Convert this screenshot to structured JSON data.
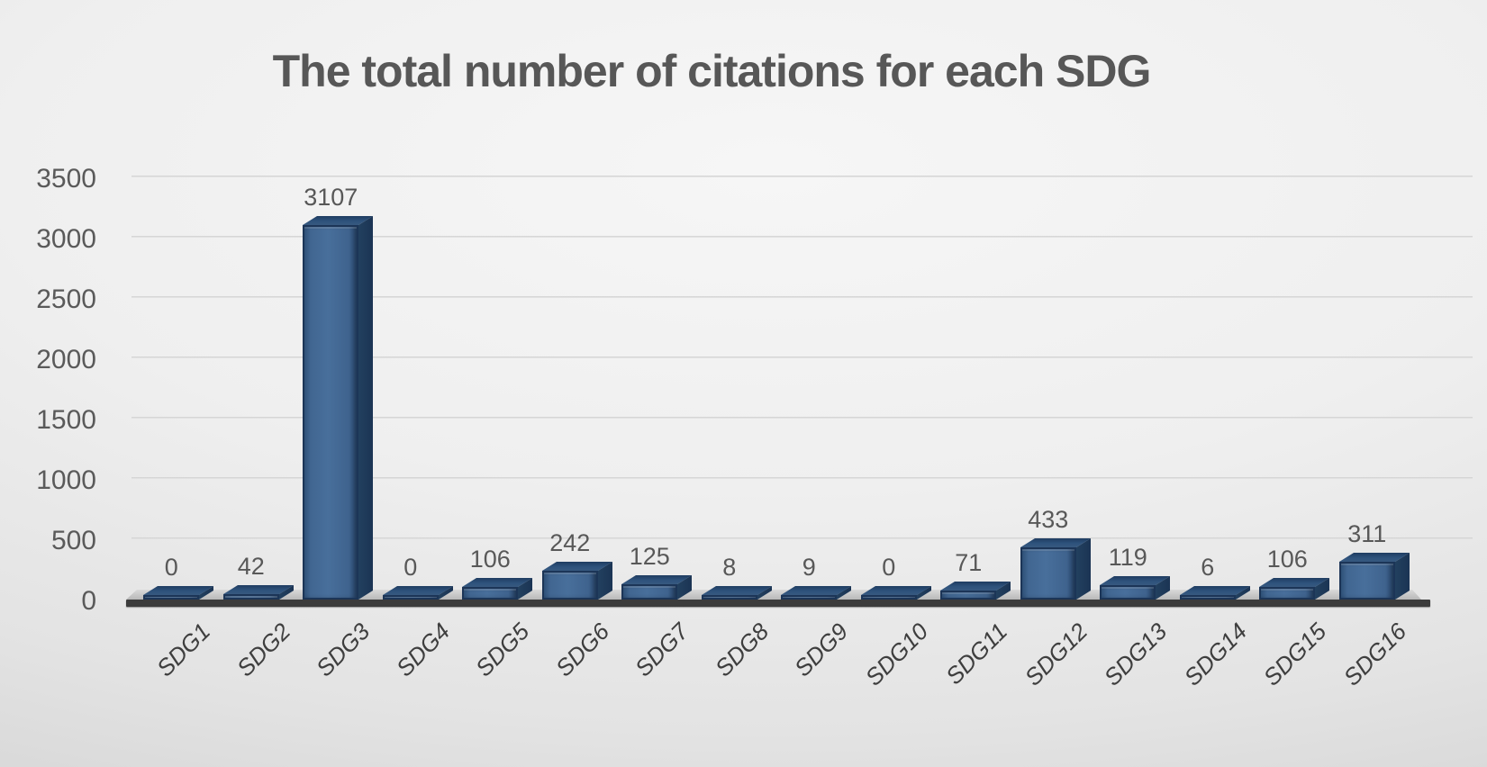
{
  "title": "The total number of citations for each SDG",
  "chart_data": {
    "type": "bar",
    "style": "3d",
    "title": "The total number of citations for each SDG",
    "categories": [
      "SDG1",
      "SDG2",
      "SDG3",
      "SDG4",
      "SDG5",
      "SDG6",
      "SDG7",
      "SDG8",
      "SDG9",
      "SDG10",
      "SDG11",
      "SDG12",
      "SDG13",
      "SDG14",
      "SDG15",
      "SDG16"
    ],
    "values": [
      0,
      42,
      3107,
      0,
      106,
      242,
      125,
      8,
      9,
      0,
      71,
      433,
      119,
      6,
      106,
      311
    ],
    "xlabel": "",
    "ylabel": "",
    "ylim": [
      0,
      3500
    ],
    "yticks": [
      0,
      500,
      1000,
      1500,
      2000,
      2500,
      3000,
      3500
    ],
    "grid": true,
    "legend": "none",
    "data_labels": true,
    "colors": {
      "bar_face": "#41658f",
      "bar_edge": "#1c3557",
      "bar_top": "#2e527c",
      "bar_side": "#1f3b5c",
      "floor_top": "#c4c4c4",
      "floor_edge": "#3c3c3c",
      "gridline": "#cdcdcd",
      "title_text": "#575757",
      "tick_text": "#5a5a5a",
      "category_text": "#3e3e3e",
      "background": "#e8e8e8"
    }
  }
}
